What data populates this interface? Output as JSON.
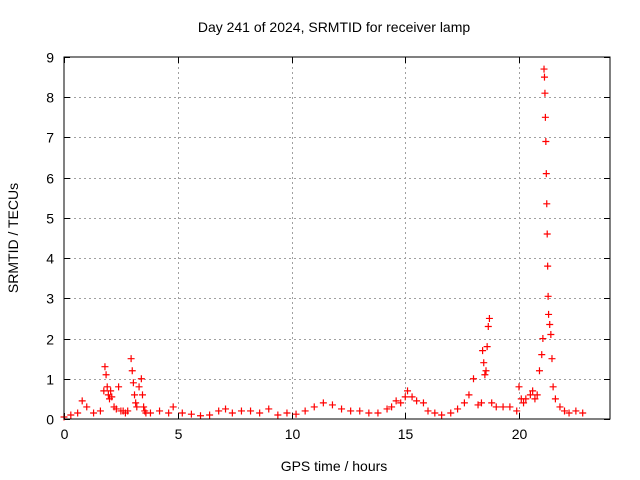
{
  "chart_data": {
    "type": "scatter",
    "title": "Day 241 of 2024, SRMTID for receiver lamp",
    "xlabel": "GPS time / hours",
    "ylabel": "SRMTID / TECUs",
    "xlim": [
      0,
      24
    ],
    "ylim": [
      0,
      9
    ],
    "xticks": [
      0,
      5,
      10,
      15,
      20
    ],
    "yticks": [
      0,
      1,
      2,
      3,
      4,
      5,
      6,
      7,
      8,
      9
    ],
    "grid": true,
    "marker": "+",
    "series_color": "#ff0000",
    "series": [
      {
        "name": "SRMTID",
        "x": [
          0.0,
          0.3,
          0.6,
          0.8,
          1.0,
          1.3,
          1.6,
          1.75,
          1.8,
          1.85,
          1.9,
          1.95,
          2.0,
          2.05,
          2.1,
          2.2,
          2.3,
          2.4,
          2.5,
          2.6,
          2.7,
          2.8,
          2.95,
          3.0,
          3.05,
          3.1,
          3.15,
          3.2,
          3.3,
          3.4,
          3.45,
          3.5,
          3.55,
          3.6,
          3.8,
          4.2,
          4.6,
          4.8,
          5.2,
          5.6,
          6.0,
          6.4,
          6.8,
          7.1,
          7.4,
          7.8,
          8.2,
          8.6,
          9.0,
          9.4,
          9.8,
          10.2,
          10.6,
          11.0,
          11.4,
          11.8,
          12.2,
          12.6,
          13.0,
          13.4,
          13.8,
          14.2,
          14.4,
          14.6,
          14.8,
          15.0,
          15.1,
          15.3,
          15.5,
          15.8,
          16.0,
          16.3,
          16.6,
          17.0,
          17.3,
          17.6,
          17.8,
          18.0,
          18.2,
          18.35,
          18.4,
          18.45,
          18.5,
          18.55,
          18.6,
          18.65,
          18.7,
          18.8,
          19.0,
          19.3,
          19.6,
          19.9,
          20.0,
          20.1,
          20.2,
          20.3,
          20.5,
          20.6,
          20.7,
          20.8,
          20.9,
          21.0,
          21.05,
          21.1,
          21.12,
          21.14,
          21.16,
          21.18,
          21.2,
          21.22,
          21.24,
          21.26,
          21.28,
          21.3,
          21.35,
          21.4,
          21.45,
          21.5,
          21.6,
          21.8,
          22.0,
          22.2,
          22.5,
          22.8
        ],
        "y": [
          0.05,
          0.1,
          0.15,
          0.45,
          0.3,
          0.15,
          0.2,
          0.7,
          1.3,
          1.1,
          0.8,
          0.6,
          0.5,
          0.7,
          0.55,
          0.3,
          0.25,
          0.8,
          0.2,
          0.2,
          0.15,
          0.2,
          1.5,
          1.2,
          0.9,
          0.6,
          0.4,
          0.3,
          0.8,
          1.0,
          0.6,
          0.3,
          0.2,
          0.15,
          0.15,
          0.2,
          0.15,
          0.3,
          0.15,
          0.12,
          0.08,
          0.1,
          0.2,
          0.25,
          0.15,
          0.2,
          0.2,
          0.15,
          0.25,
          0.1,
          0.15,
          0.12,
          0.2,
          0.3,
          0.4,
          0.35,
          0.25,
          0.2,
          0.2,
          0.15,
          0.15,
          0.25,
          0.3,
          0.45,
          0.4,
          0.55,
          0.7,
          0.55,
          0.45,
          0.4,
          0.2,
          0.15,
          0.1,
          0.15,
          0.25,
          0.4,
          0.6,
          1.0,
          0.35,
          0.4,
          1.7,
          1.4,
          1.1,
          1.2,
          1.8,
          2.3,
          2.5,
          0.4,
          0.3,
          0.3,
          0.3,
          0.2,
          0.8,
          0.5,
          0.4,
          0.5,
          0.6,
          0.7,
          0.5,
          0.6,
          1.2,
          1.6,
          2.0,
          8.7,
          8.5,
          8.1,
          7.5,
          6.9,
          6.1,
          5.35,
          4.6,
          3.8,
          3.05,
          2.6,
          2.35,
          2.1,
          1.5,
          0.8,
          0.5,
          0.3,
          0.2,
          0.15,
          0.2,
          0.15
        ],
        "style": "red_markers"
      }
    ]
  }
}
